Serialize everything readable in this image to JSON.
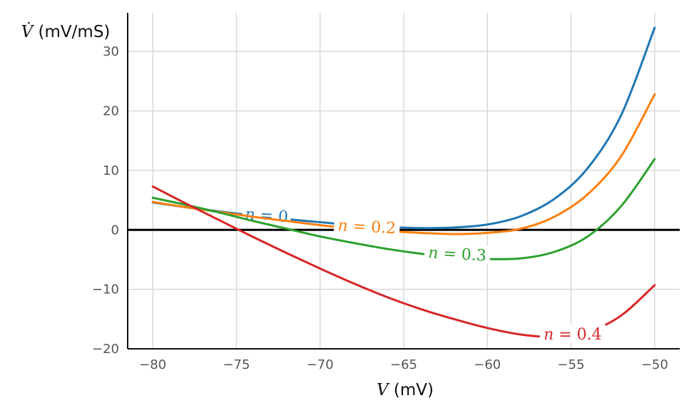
{
  "chart_data": {
    "type": "line",
    "x_label": {
      "symbol": "V",
      "unit": "(mV)"
    },
    "y_label": {
      "symbol": "V̇",
      "unit": "(mV/mS)"
    },
    "xlim": [
      -81.5,
      -48.5
    ],
    "ylim": [
      -20,
      36.5
    ],
    "x_ticks": [
      -80,
      -75,
      -70,
      -65,
      -60,
      -55,
      -50
    ],
    "x_tick_labels": [
      "−80",
      "−75",
      "−70",
      "−65",
      "−60",
      "−55",
      "−50"
    ],
    "y_ticks": [
      -20,
      -10,
      0,
      10,
      20,
      30
    ],
    "y_tick_labels": [
      "−20",
      "−10",
      "0",
      "10",
      "20",
      "30"
    ],
    "grid": true,
    "zero_line": true,
    "x": [
      -80,
      -78,
      -76,
      -74,
      -72,
      -70,
      -68,
      -66,
      -64,
      -62,
      -60,
      -58,
      -56,
      -54,
      -52,
      -50
    ],
    "series": [
      {
        "name": "n = 0",
        "color": "#1f77b4",
        "values": [
          4.6,
          3.8,
          3.1,
          2.4,
          1.8,
          1.3,
          0.8,
          0.5,
          0.3,
          0.4,
          0.9,
          2.3,
          5.2,
          10.4,
          19.3,
          34.0
        ],
        "label": {
          "text": "n = 0",
          "x": -73.2,
          "y": 2.4,
          "angle": 4
        }
      },
      {
        "name": "n = 0.2",
        "color": "#ff7f0e",
        "values": [
          4.7,
          3.8,
          3.0,
          2.2,
          1.5,
          0.8,
          0.2,
          -0.2,
          -0.5,
          -0.7,
          -0.5,
          0.2,
          2.2,
          6.0,
          12.4,
          22.8
        ],
        "label": {
          "text": "n = 0.2",
          "x": -67.2,
          "y": 0.5,
          "angle": 3
        }
      },
      {
        "name": "n = 0.3",
        "color": "#2ca02c",
        "values": [
          5.4,
          4.2,
          2.9,
          1.5,
          0.2,
          -1.1,
          -2.2,
          -3.2,
          -4.0,
          -4.6,
          -4.9,
          -4.8,
          -3.7,
          -1.1,
          4.0,
          11.9
        ],
        "label": {
          "text": "n = 0.3",
          "x": -61.8,
          "y": -4.1,
          "angle": 3
        }
      },
      {
        "name": "n = 0.4",
        "color": "#d62728",
        "values": [
          7.3,
          4.4,
          1.6,
          -1.2,
          -3.9,
          -6.5,
          -9.0,
          -11.3,
          -13.3,
          -15.0,
          -16.5,
          -17.6,
          -18.0,
          -17.2,
          -14.4,
          -9.3
        ],
        "label": {
          "text": "n = 0.4",
          "x": -54.9,
          "y": -17.6,
          "angle": 0
        }
      }
    ]
  }
}
